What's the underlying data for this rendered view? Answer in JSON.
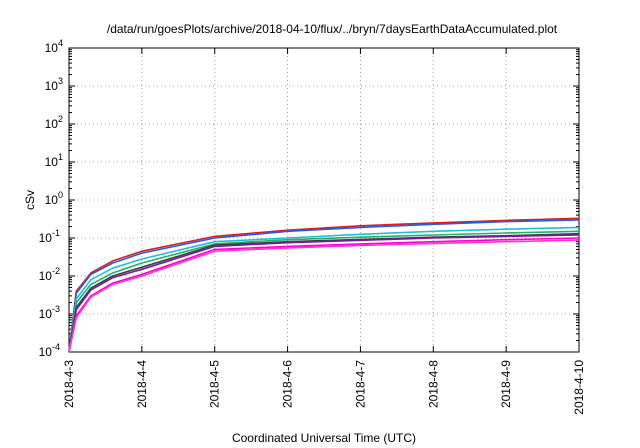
{
  "chart_data": {
    "type": "line",
    "title": "/data/run/goesPlots/archive/2018-04-10/flux/../bryn/7daysEarthDataAccumulated.plot",
    "xlabel": "Coordinated Universal Time (UTC)",
    "ylabel": "cSv",
    "y_scale": "log",
    "ylim": [
      0.0001,
      10000
    ],
    "xlim": [
      "2018-4-3",
      "2018-4-10"
    ],
    "x_ticks": [
      "2018-4-3",
      "2018-4-4",
      "2018-4-5",
      "2018-4-6",
      "2018-4-7",
      "2018-4-8",
      "2018-4-9",
      "2018-4-10"
    ],
    "y_ticks": [
      {
        "base": "10",
        "exp": "-4"
      },
      {
        "base": "10",
        "exp": "-3"
      },
      {
        "base": "10",
        "exp": "-2"
      },
      {
        "base": "10",
        "exp": "-1"
      },
      {
        "base": "10",
        "exp": "0"
      },
      {
        "base": "10",
        "exp": "1"
      },
      {
        "base": "10",
        "exp": "2"
      },
      {
        "base": "10",
        "exp": "3"
      },
      {
        "base": "10",
        "exp": "4"
      }
    ],
    "grid": true,
    "x": [
      "2018-4-3",
      "2018-4-3.1",
      "2018-4-3.3",
      "2018-4-3.6",
      "2018-4-4",
      "2018-4-5",
      "2018-4-6",
      "2018-4-7",
      "2018-4-8",
      "2018-4-9",
      "2018-4-10"
    ],
    "series": [
      {
        "color": "#e41a1c",
        "values": [
          0.0001,
          0.004,
          0.012,
          0.025,
          0.045,
          0.11,
          0.16,
          0.21,
          0.25,
          0.29,
          0.33
        ]
      },
      {
        "color": "#1f5fe0",
        "values": [
          0.0001,
          0.0035,
          0.011,
          0.022,
          0.04,
          0.1,
          0.15,
          0.19,
          0.23,
          0.27,
          0.3
        ]
      },
      {
        "color": "#20c0d0",
        "values": [
          0.0001,
          0.0025,
          0.008,
          0.016,
          0.028,
          0.08,
          0.1,
          0.125,
          0.15,
          0.17,
          0.19
        ]
      },
      {
        "color": "#20b070",
        "values": [
          0.0001,
          0.002,
          0.006,
          0.012,
          0.022,
          0.07,
          0.09,
          0.105,
          0.12,
          0.135,
          0.15
        ]
      },
      {
        "color": "#404040",
        "values": [
          0.0001,
          0.0015,
          0.0048,
          0.01,
          0.017,
          0.065,
          0.08,
          0.092,
          0.105,
          0.115,
          0.13
        ]
      },
      {
        "color": "#7a1aa0",
        "values": [
          0.0001,
          0.0013,
          0.0043,
          0.009,
          0.015,
          0.06,
          0.075,
          0.087,
          0.1,
          0.11,
          0.12
        ]
      },
      {
        "color": "#ff00cc",
        "values": [
          0.0001,
          0.0009,
          0.003,
          0.0065,
          0.011,
          0.05,
          0.06,
          0.07,
          0.08,
          0.09,
          0.1
        ]
      },
      {
        "color": "#ff33dd",
        "values": [
          0.0001,
          0.0008,
          0.0028,
          0.006,
          0.01,
          0.045,
          0.055,
          0.064,
          0.072,
          0.08,
          0.088
        ]
      }
    ]
  }
}
